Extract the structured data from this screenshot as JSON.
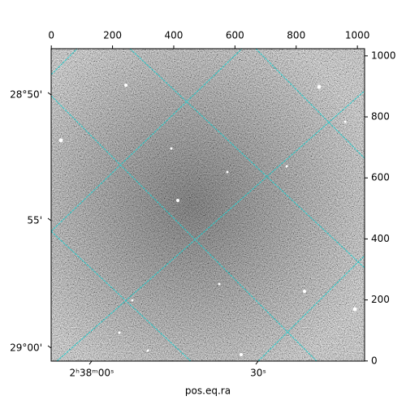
{
  "chart_data": {
    "type": "image",
    "xlabel": "pos.eq.ra",
    "xlim": [
      -0.5,
      1023.5
    ],
    "xticks": [
      0,
      200,
      400,
      600,
      800,
      1000
    ],
    "ylim": [
      -0.5,
      1023.5
    ],
    "yticks": [
      0,
      200,
      400,
      600,
      800,
      1000
    ],
    "ra_labels": [
      "2ʰ38ᵐ00ˢ",
      "30ˢ"
    ],
    "dec_labels": [
      "28°50'",
      "55'",
      "29°00'"
    ],
    "grid_color": "#22cccc"
  }
}
